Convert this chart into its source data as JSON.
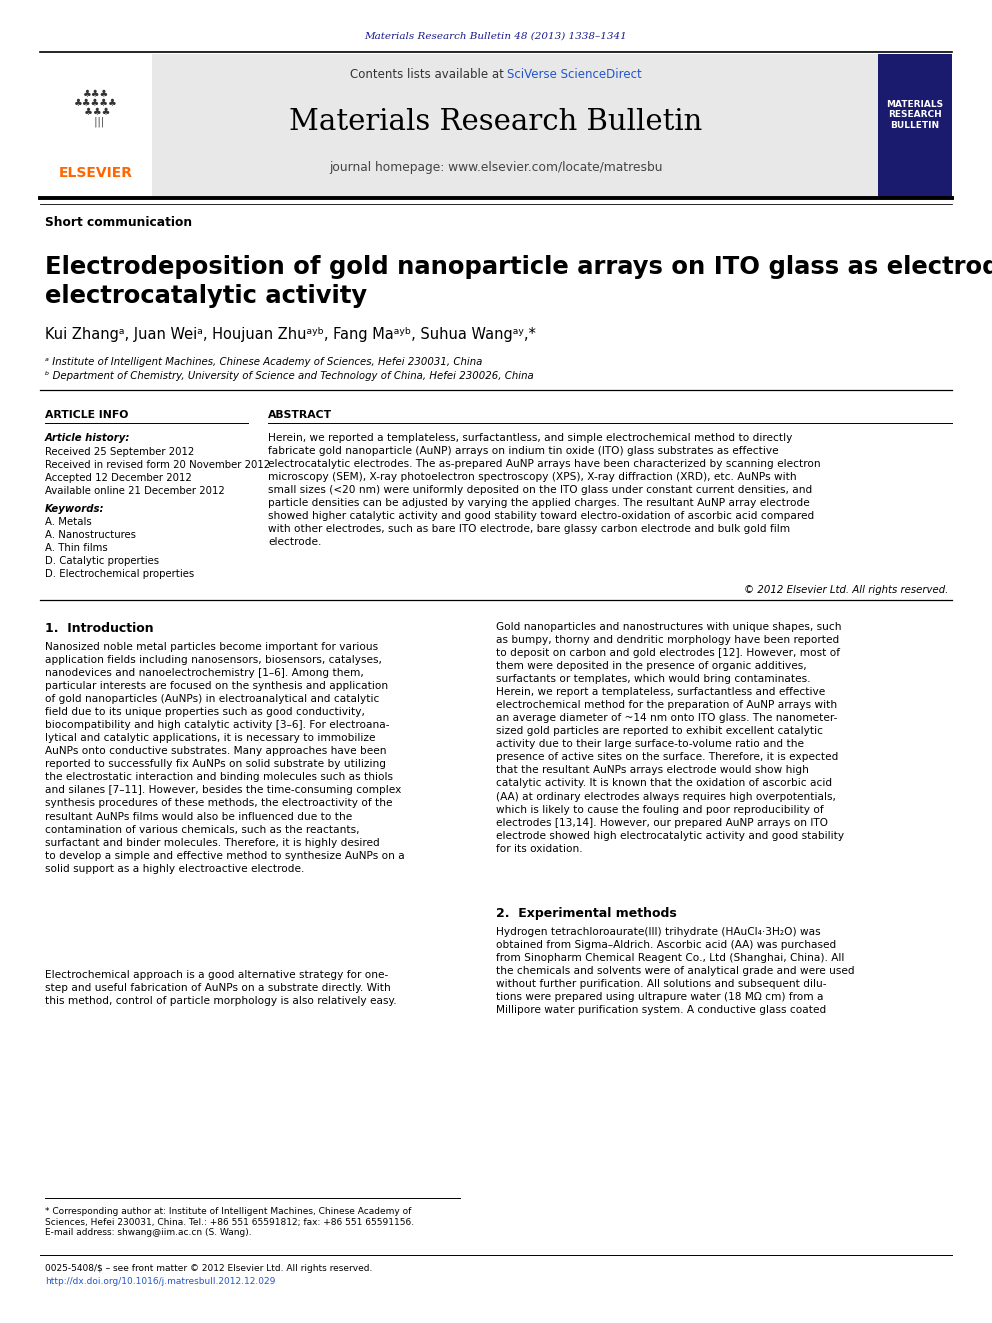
{
  "page_width": 9.92,
  "page_height": 13.23,
  "bg_color": "#ffffff",
  "top_journal_ref": "Materials Research Bulletin 48 (2013) 1338–1341",
  "top_ref_color": "#1a1a8c",
  "header_bg": "#e8e8e8",
  "header_text": "Materials Research Bulletin",
  "header_subtext": "journal homepage: www.elsevier.com/locate/matresbu",
  "header_contents": "Contents lists available at",
  "sciverse_text": "SciVerse ScienceDirect",
  "elsevier_color": "#ff6600",
  "elsevier_text": "ELSEVIER",
  "journal_box_bg": "#1a1a6e",
  "journal_box_title": "MATERIALS\nRESEARCH\nBULLETIN",
  "section_label": "Short communication",
  "paper_title": "Electrodeposition of gold nanoparticle arrays on ITO glass as electrode with high\nelectrocatalytic activity",
  "author_line": "Kui Zhangᵃ, Juan Weiᵃ, Houjuan Zhuᵃʸᵇ, Fang Maᵃʸᵇ, Suhua Wangᵃʸ,*",
  "affil_a": "ᵃ Institute of Intelligent Machines, Chinese Academy of Sciences, Hefei 230031, China",
  "affil_b": "ᵇ Department of Chemistry, University of Science and Technology of China, Hefei 230026, China",
  "article_info_title": "ARTICLE INFO",
  "abstract_title": "ABSTRACT",
  "article_history_title": "Article history:",
  "received1": "Received 25 September 2012",
  "received2": "Received in revised form 20 November 2012",
  "accepted": "Accepted 12 December 2012",
  "available": "Available online 21 December 2012",
  "keywords_title": "Keywords:",
  "keywords": [
    "A. Metals",
    "A. Nanostructures",
    "A. Thin films",
    "D. Catalytic properties",
    "D. Electrochemical properties"
  ],
  "abstract_text": "Herein, we reported a templateless, surfactantless, and simple electrochemical method to directly\nfabricate gold nanoparticle (AuNP) arrays on indium tin oxide (ITO) glass substrates as effective\nelectrocatalytic electrodes. The as-prepared AuNP arrays have been characterized by scanning electron\nmicroscopy (SEM), X-ray photoelectron spectroscopy (XPS), X-ray diffraction (XRD), etc. AuNPs with\nsmall sizes (<20 nm) were uniformly deposited on the ITO glass under constant current densities, and\nparticle densities can be adjusted by varying the applied charges. The resultant AuNP array electrode\nshowed higher catalytic activity and good stability toward electro-oxidation of ascorbic acid compared\nwith other electrodes, such as bare ITO electrode, bare glassy carbon electrode and bulk gold film\nelectrode.",
  "copyright_text": "© 2012 Elsevier Ltd. All rights reserved.",
  "intro_title": "1.  Introduction",
  "intro_text1": "Nanosized noble metal particles become important for various\napplication fields including nanosensors, biosensors, catalyses,\nnanodevices and nanoelectrochemistry [1–6]. Among them,\nparticular interests are focused on the synthesis and application\nof gold nanoparticles (AuNPs) in electroanalytical and catalytic\nfield due to its unique properties such as good conductivity,\nbiocompatibility and high catalytic activity [3–6]. For electroana-\nlytical and catalytic applications, it is necessary to immobilize\nAuNPs onto conductive substrates. Many approaches have been\nreported to successfully fix AuNPs on solid substrate by utilizing\nthe electrostatic interaction and binding molecules such as thiols\nand silanes [7–11]. However, besides the time-consuming complex\nsynthesis procedures of these methods, the electroactivity of the\nresultant AuNPs films would also be influenced due to the\ncontamination of various chemicals, such as the reactants,\nsurfactant and binder molecules. Therefore, it is highly desired\nto develop a simple and effective method to synthesize AuNPs on a\nsolid support as a highly electroactive electrode.",
  "intro_text2": "Electrochemical approach is a good alternative strategy for one-\nstep and useful fabrication of AuNPs on a substrate directly. With\nthis method, control of particle morphology is also relatively easy.",
  "right_col_text1": "Gold nanoparticles and nanostructures with unique shapes, such\nas bumpy, thorny and dendritic morphology have been reported\nto deposit on carbon and gold electrodes [12]. However, most of\nthem were deposited in the presence of organic additives,\nsurfactants or templates, which would bring contaminates.\nHerein, we report a templateless, surfactantless and effective\nelectrochemical method for the preparation of AuNP arrays with\nan average diameter of ~14 nm onto ITO glass. The nanometer-\nsized gold particles are reported to exhibit excellent catalytic\nactivity due to their large surface-to-volume ratio and the\npresence of active sites on the surface. Therefore, it is expected\nthat the resultant AuNPs arrays electrode would show high\ncatalytic activity. It is known that the oxidation of ascorbic acid\n(AA) at ordinary electrodes always requires high overpotentials,\nwhich is likely to cause the fouling and poor reproducibility of\nelectrodes [13,14]. However, our prepared AuNP arrays on ITO\nelectrode showed high electrocatalytic activity and good stability\nfor its oxidation.",
  "exp_title": "2.  Experimental methods",
  "exp_text": "Hydrogen tetrachloroaurate(III) trihydrate (HAuCl₄·3H₂O) was\nobtained from Sigma–Aldrich. Ascorbic acid (AA) was purchased\nfrom Sinopharm Chemical Reagent Co., Ltd (Shanghai, China). All\nthe chemicals and solvents were of analytical grade and were used\nwithout further purification. All solutions and subsequent dilu-\ntions were prepared using ultrapure water (18 MΩ cm) from a\nMillipore water purification system. A conductive glass coated",
  "footnote_star": "* Corresponding author at: Institute of Intelligent Machines, Chinese Academy of\nSciences, Hefei 230031, China. Tel.: +86 551 65591812; fax: +86 551 65591156.",
  "footnote_email": "E-mail address: shwang@iim.ac.cn (S. Wang).",
  "bottom_ref": "0025-5408/$ – see front matter © 2012 Elsevier Ltd. All rights reserved.",
  "bottom_doi": "http://dx.doi.org/10.1016/j.matresbull.2012.12.029",
  "line_color": "#000000",
  "dark_navy": "#1a1a6e",
  "text_color": "#000000"
}
